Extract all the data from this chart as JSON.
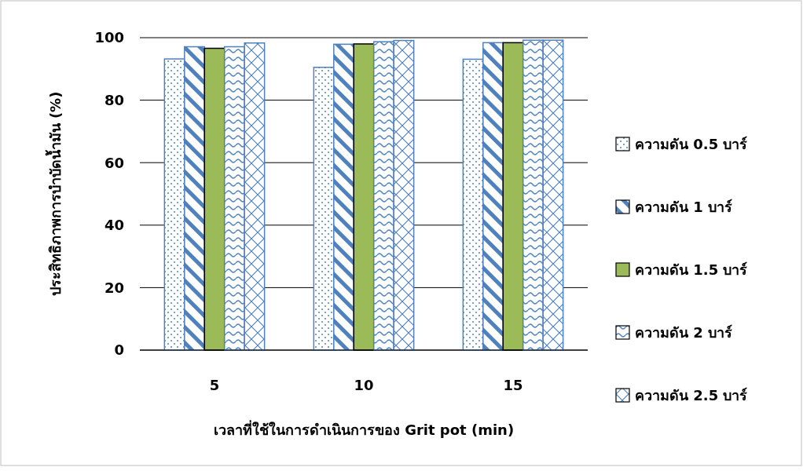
{
  "chart_data": {
    "type": "bar",
    "xlabel": "เวลาที่ใช้ในการดำเนินการของ Grit pot (min)",
    "ylabel": "ประสิทธิภาพการบำบัดน้ำมัน (%)",
    "categories": [
      "5",
      "10",
      "15"
    ],
    "series": [
      {
        "name": "ความดัน 0.5 บาร์",
        "color": "#4f81bd",
        "values": [
          93.2,
          90.5,
          93.1
        ]
      },
      {
        "name": "ความดัน 1 บาร์",
        "color": "#4f81bd",
        "values": [
          97.1,
          97.9,
          98.4
        ]
      },
      {
        "name": "ความดัน 1.5 บาร์",
        "color": "#9bbb59",
        "values": [
          96.6,
          98.0,
          98.4
        ]
      },
      {
        "name": "ความดัน 2 บาร์",
        "color": "#4f81bd",
        "values": [
          97.1,
          98.7,
          99.2
        ]
      },
      {
        "name": "ความดัน 2.5 บาร์",
        "color": "#4f81bd",
        "values": [
          98.3,
          99.1,
          99.2
        ]
      }
    ],
    "ylim": [
      0,
      100
    ],
    "yticks": [
      0,
      20,
      40,
      60,
      80,
      100
    ],
    "grid": "y",
    "legend": "right"
  }
}
